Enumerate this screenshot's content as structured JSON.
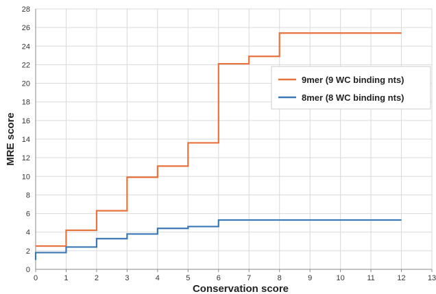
{
  "chart_data": {
    "type": "line",
    "step": true,
    "title": "",
    "xlabel": "Conservation score",
    "ylabel": "MRE score",
    "xlim": [
      0,
      13
    ],
    "ylim": [
      0,
      28
    ],
    "xticks": [
      0,
      1,
      2,
      3,
      4,
      5,
      6,
      7,
      8,
      9,
      10,
      11,
      12,
      13
    ],
    "yticks": [
      0,
      2,
      4,
      6,
      8,
      10,
      12,
      14,
      16,
      18,
      20,
      22,
      24,
      26,
      28
    ],
    "grid": true,
    "legend_position": "right-upper",
    "series": [
      {
        "name": "9mer (9 WC binding nts)",
        "color": "#e8723c",
        "x": [
          0,
          1,
          2,
          3,
          4,
          5,
          6,
          7,
          8,
          12
        ],
        "y": [
          2.5,
          4.2,
          6.3,
          9.9,
          11.1,
          13.6,
          22.1,
          22.9,
          25.4,
          25.4
        ]
      },
      {
        "name": "8mer (8 WC binding nts)",
        "color": "#3a77b5",
        "x": [
          0,
          1,
          2,
          3,
          4,
          5,
          6,
          12
        ],
        "y": [
          1.8,
          2.4,
          3.3,
          3.8,
          4.4,
          4.6,
          5.3,
          5.3
        ],
        "start_y": 1.0
      }
    ]
  }
}
